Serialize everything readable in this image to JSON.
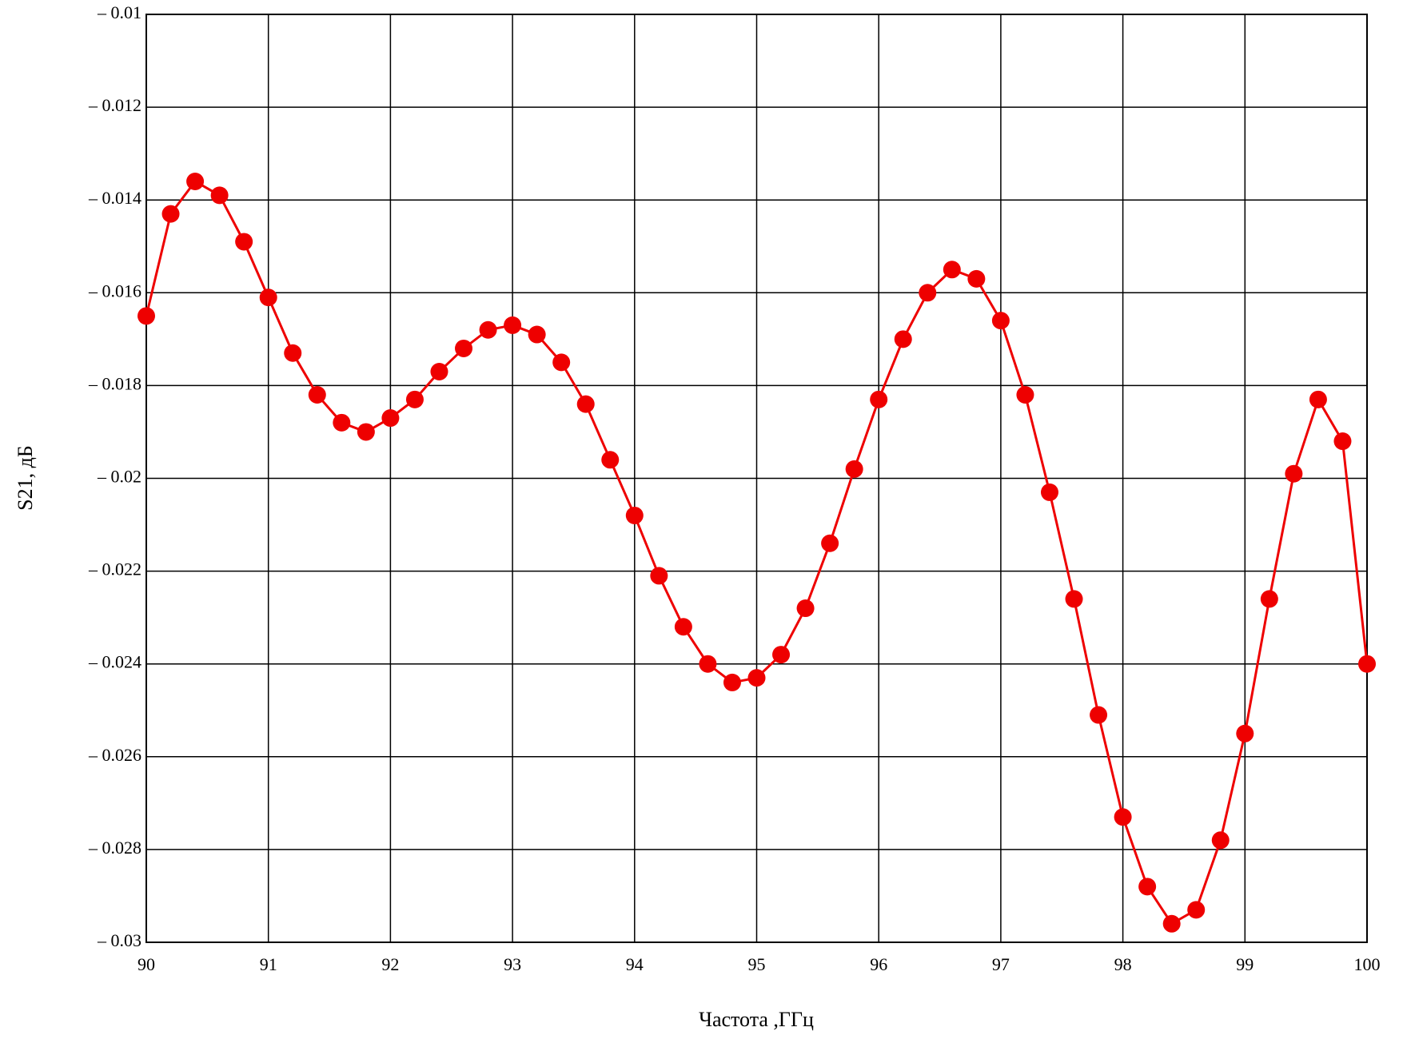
{
  "chart_data": {
    "type": "line",
    "x_label": "Частота ,ГГц",
    "y_label": "S21, дБ",
    "x": [
      90,
      90.2,
      90.4,
      90.6,
      90.8,
      91,
      91.2,
      91.4,
      91.6,
      91.8,
      92,
      92.2,
      92.4,
      92.6,
      92.8,
      93,
      93.2,
      93.4,
      93.6,
      93.8,
      94,
      94.2,
      94.4,
      94.6,
      94.8,
      95,
      95.2,
      95.4,
      95.6,
      95.8,
      96,
      96.2,
      96.4,
      96.6,
      96.8,
      97,
      97.2,
      97.4,
      97.6,
      97.8,
      98,
      98.2,
      98.4,
      98.6,
      98.8,
      99,
      99.2,
      99.4,
      99.6,
      99.8,
      100
    ],
    "series": [
      {
        "color": "#ee0000",
        "values": [
          -0.0165,
          -0.0143,
          -0.0136,
          -0.0139,
          -0.0149,
          -0.0161,
          -0.0173,
          -0.0182,
          -0.0188,
          -0.019,
          -0.0187,
          -0.0183,
          -0.0177,
          -0.0172,
          -0.0168,
          -0.0167,
          -0.0169,
          -0.0175,
          -0.0184,
          -0.0196,
          -0.0208,
          -0.0221,
          -0.0232,
          -0.024,
          -0.0244,
          -0.0243,
          -0.0238,
          -0.0228,
          -0.0214,
          -0.0198,
          -0.0183,
          -0.017,
          -0.016,
          -0.0155,
          -0.0157,
          -0.0166,
          -0.0182,
          -0.0203,
          -0.0226,
          -0.0251,
          -0.0273,
          -0.0288,
          -0.0296,
          -0.0293,
          -0.0278,
          -0.0255,
          -0.0226,
          -0.0199,
          -0.0183,
          -0.0192,
          -0.024
        ]
      }
    ],
    "xlim": [
      90,
      100
    ],
    "xticks": [
      90,
      91,
      92,
      93,
      94,
      95,
      96,
      97,
      98,
      99,
      100
    ],
    "ylim": [
      -0.03,
      -0.01
    ],
    "yticks": [
      {
        "value": -0.03,
        "label": "– 0.03"
      },
      {
        "value": -0.028,
        "label": "– 0.028"
      },
      {
        "value": -0.026,
        "label": "– 0.026"
      },
      {
        "value": -0.024,
        "label": "– 0.024"
      },
      {
        "value": -0.022,
        "label": "– 0.022"
      },
      {
        "value": -0.02,
        "label": "– 0.02"
      },
      {
        "value": -0.018,
        "label": "– 0.018"
      },
      {
        "value": -0.016,
        "label": "– 0.016"
      },
      {
        "value": -0.014,
        "label": "– 0.014"
      },
      {
        "value": -0.012,
        "label": "– 0.012"
      },
      {
        "value": -0.01,
        "label": "– 0.01"
      }
    ],
    "grid": true
  }
}
